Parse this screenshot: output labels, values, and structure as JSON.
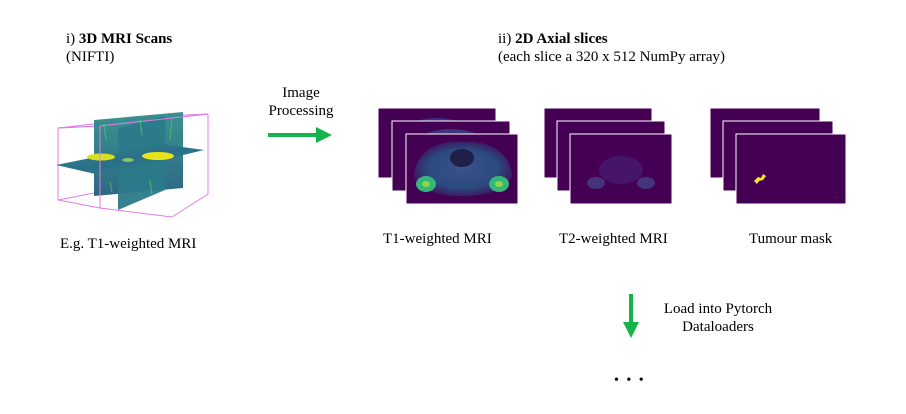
{
  "section1": {
    "prefix": "i) ",
    "title": "3D MRI Scans",
    "subtitle": "(NIFTI)",
    "caption": "E.g. T1-weighted MRI"
  },
  "process_arrow": {
    "line1": "Image",
    "line2": "Processing",
    "color": "#16b34a"
  },
  "section2": {
    "prefix": "ii) ",
    "title": "2D Axial slices",
    "subtitle": "(each slice a 320 x 512 NumPy array)",
    "stacks": [
      {
        "caption": "T1-weighted MRI"
      },
      {
        "caption": "T2-weighted MRI"
      },
      {
        "caption": "Tumour mask"
      }
    ]
  },
  "load_arrow": {
    "line1": "Load into Pytorch",
    "line2": "Dataloaders",
    "color": "#16b34a"
  },
  "ellipsis": "• • •",
  "colors": {
    "viridis_dark": "#440154",
    "viridis_teal": "#2c7f8e",
    "viridis_green": "#3bb873",
    "viridis_yellow": "#e8e419",
    "box_edge": "#e27ce6"
  }
}
